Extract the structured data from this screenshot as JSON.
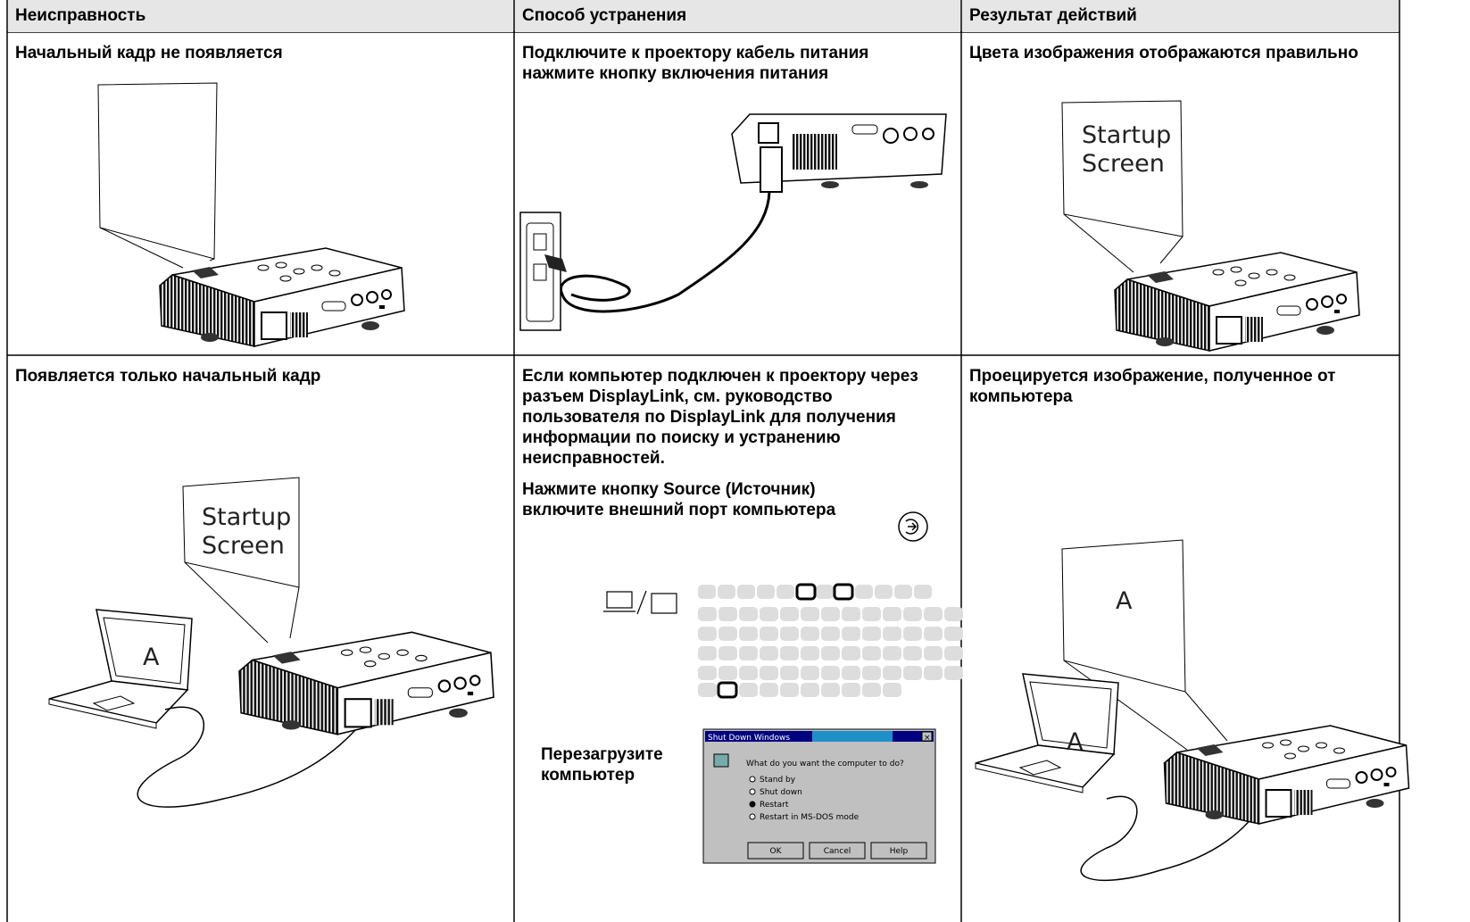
{
  "table": {
    "header": [
      "Неисправность",
      "Способ устранения",
      "Результат действий"
    ],
    "rows": [
      {
        "problem": "Начальный кадр не появляется",
        "solution": [
          "Подключите к проектору кабель питания нажмите кнопку включения питания"
        ],
        "result": "Цвета изображения отображаются правильно"
      },
      {
        "problem": "Появляется только начальный кадр",
        "solution": [
          "Если компьютер подключен к проектору через разъем DisplayLink, см. руководство пользователя по DisplayLink для получения информации по поиску и устранению неисправностей.",
          "Нажмите кнопку Source (Источник) включите внешний порт компьютера",
          "Перезагрузите компьютер"
        ],
        "result": "Проецируется изображение, полученное от компьютера"
      }
    ]
  },
  "figures": {
    "startup_text": [
      "Startup",
      "Screen"
    ],
    "screen_letter": "A",
    "dialog": {
      "title": "Shut Down Windows",
      "close": "×",
      "question": "What do you want the computer to do?",
      "options": [
        "Stand by",
        "Shut down",
        "Restart",
        "Restart in MS-DOS mode"
      ],
      "buttons": [
        "OK",
        "Cancel",
        "Help"
      ]
    }
  }
}
